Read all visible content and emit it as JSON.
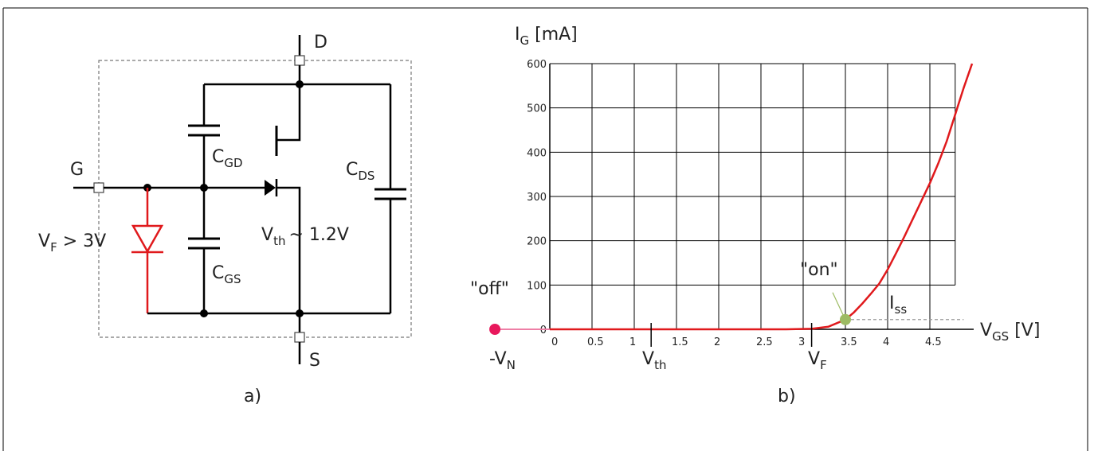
{
  "circuit": {
    "label_D": "D",
    "label_G": "G",
    "label_S": "S",
    "cgd": {
      "main": "C",
      "sub": "GD"
    },
    "cgs": {
      "main": "C",
      "sub": "GS"
    },
    "cds": {
      "main": "C",
      "sub": "DS"
    },
    "vf": {
      "main": "V",
      "sub": "F",
      "rest": " > 3V"
    },
    "vth": {
      "main": "V",
      "sub": "th",
      "rest": "~ 1.2V"
    },
    "panel_label": "a)",
    "colors": {
      "wire": "#000000",
      "diode": "#e0191c",
      "box": "#777777"
    }
  },
  "chart_data": {
    "type": "line",
    "ylabel": {
      "main": "I",
      "sub": "G",
      "rest": " [mA]"
    },
    "xlabel": {
      "main": "V",
      "sub": "GS",
      "rest": " [V]"
    },
    "x_ticks": [
      "0",
      "0.5",
      "1",
      "1.5",
      "2",
      "2.5",
      "3",
      "3.5",
      "4",
      "4.5"
    ],
    "y_ticks": [
      "0",
      "100",
      "200",
      "300",
      "400",
      "500",
      "600"
    ],
    "xlim": [
      0,
      5
    ],
    "ylim": [
      0,
      600
    ],
    "grid": true,
    "series": [
      {
        "color": "#e0191c",
        "points": [
          [
            0,
            0
          ],
          [
            1,
            0
          ],
          [
            2,
            0
          ],
          [
            2.8,
            0
          ],
          [
            3.1,
            1
          ],
          [
            3.3,
            6
          ],
          [
            3.5,
            22
          ],
          [
            3.6,
            38
          ],
          [
            3.7,
            58
          ],
          [
            3.8,
            80
          ],
          [
            3.9,
            103
          ],
          [
            4.0,
            135
          ],
          [
            4.1,
            172
          ],
          [
            4.2,
            210
          ],
          [
            4.3,
            250
          ],
          [
            4.4,
            290
          ],
          [
            4.5,
            330
          ],
          [
            4.6,
            375
          ],
          [
            4.7,
            425
          ],
          [
            4.8,
            485
          ],
          [
            4.9,
            545
          ],
          [
            5.0,
            600
          ]
        ]
      }
    ],
    "off_segment": {
      "color": "#ee7fa6",
      "x": [
        -0.65,
        0
      ]
    },
    "annotations": {
      "off": "\"off\"",
      "on": "\"on\"",
      "neg_vn": {
        "main": "-V",
        "sub": "N"
      },
      "vth_marker": {
        "main": "V",
        "sub": "th"
      },
      "vf_marker": {
        "main": "V",
        "sub": "F"
      },
      "iss": {
        "main": "I",
        "sub": "ss"
      }
    },
    "points": {
      "off": {
        "x": -0.65,
        "y": 0,
        "color": "#e8185c"
      },
      "on": {
        "x": 3.5,
        "y": 22,
        "color": "#9dbb63"
      }
    },
    "vth_at": 1.2,
    "vf_at": 3.1,
    "panel_label": "b)"
  }
}
